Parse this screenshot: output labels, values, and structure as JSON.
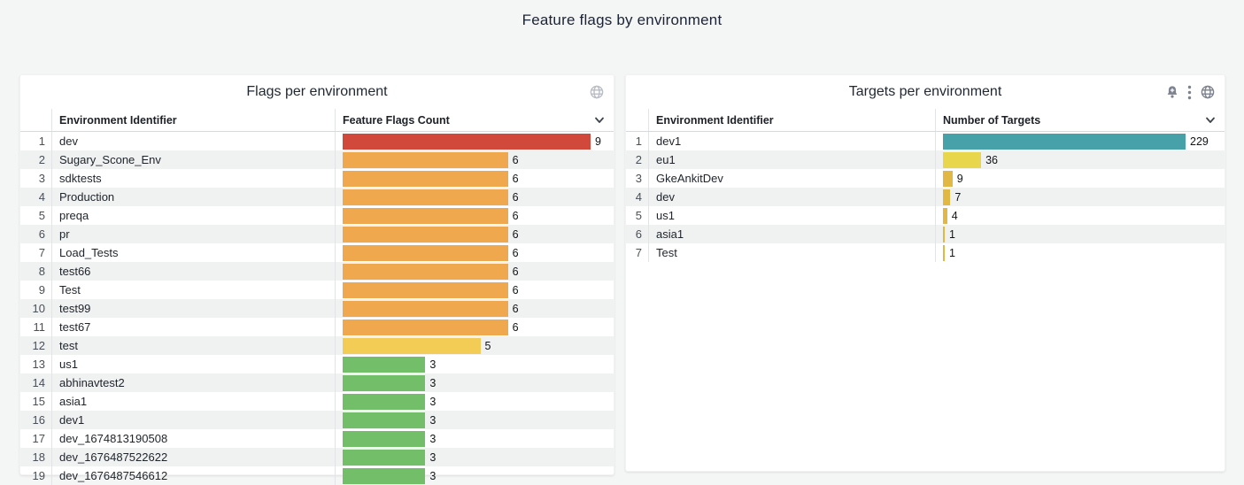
{
  "page": {
    "title": "Feature flags by environment",
    "background": "#f4f5f5"
  },
  "chart_data": [
    {
      "type": "bar",
      "orientation": "horizontal",
      "title": "Flags per environment",
      "columns": [
        "Environment Identifier",
        "Feature Flags Count"
      ],
      "max": 9,
      "categories": [
        "dev",
        "Sugary_Scone_Env",
        "sdktests",
        "Production",
        "preqa",
        "pr",
        "Load_Tests",
        "test66",
        "Test",
        "test99",
        "test67",
        "test",
        "us1",
        "abhinavtest2",
        "asia1",
        "dev1",
        "dev_1674813190508",
        "dev_1676487522622",
        "dev_1676487546612"
      ],
      "values": [
        9,
        6,
        6,
        6,
        6,
        6,
        6,
        6,
        6,
        6,
        6,
        5,
        3,
        3,
        3,
        3,
        3,
        3,
        3
      ],
      "bar_colors": [
        "#d0493b",
        "#f0a84e",
        "#f0a84e",
        "#f0a84e",
        "#f0a84e",
        "#f0a84e",
        "#f0a84e",
        "#f0a84e",
        "#f0a84e",
        "#f0a84e",
        "#f0a84e",
        "#f2cc55",
        "#73bf69",
        "#73bf69",
        "#73bf69",
        "#73bf69",
        "#73bf69",
        "#73bf69",
        "#73bf69"
      ]
    },
    {
      "type": "bar",
      "orientation": "horizontal",
      "title": "Targets per environment",
      "columns": [
        "Environment Identifier",
        "Number of Targets"
      ],
      "max": 229,
      "categories": [
        "dev1",
        "eu1",
        "GkeAnkitDev",
        "dev",
        "us1",
        "asia1",
        "Test"
      ],
      "values": [
        229,
        36,
        9,
        7,
        4,
        1,
        1
      ],
      "bar_colors": [
        "#46a1a8",
        "#e8d64c",
        "#e0b843",
        "#e0b843",
        "#e0b843",
        "#e0b843",
        "#e0b843"
      ]
    }
  ],
  "panels": [
    {
      "icons": [
        "globe-icon"
      ],
      "icon_color": "#b9bdc4"
    },
    {
      "icons": [
        "bell-plus-icon",
        "kebab-menu-icon",
        "globe-icon"
      ],
      "icon_color": "#7d838e"
    }
  ]
}
